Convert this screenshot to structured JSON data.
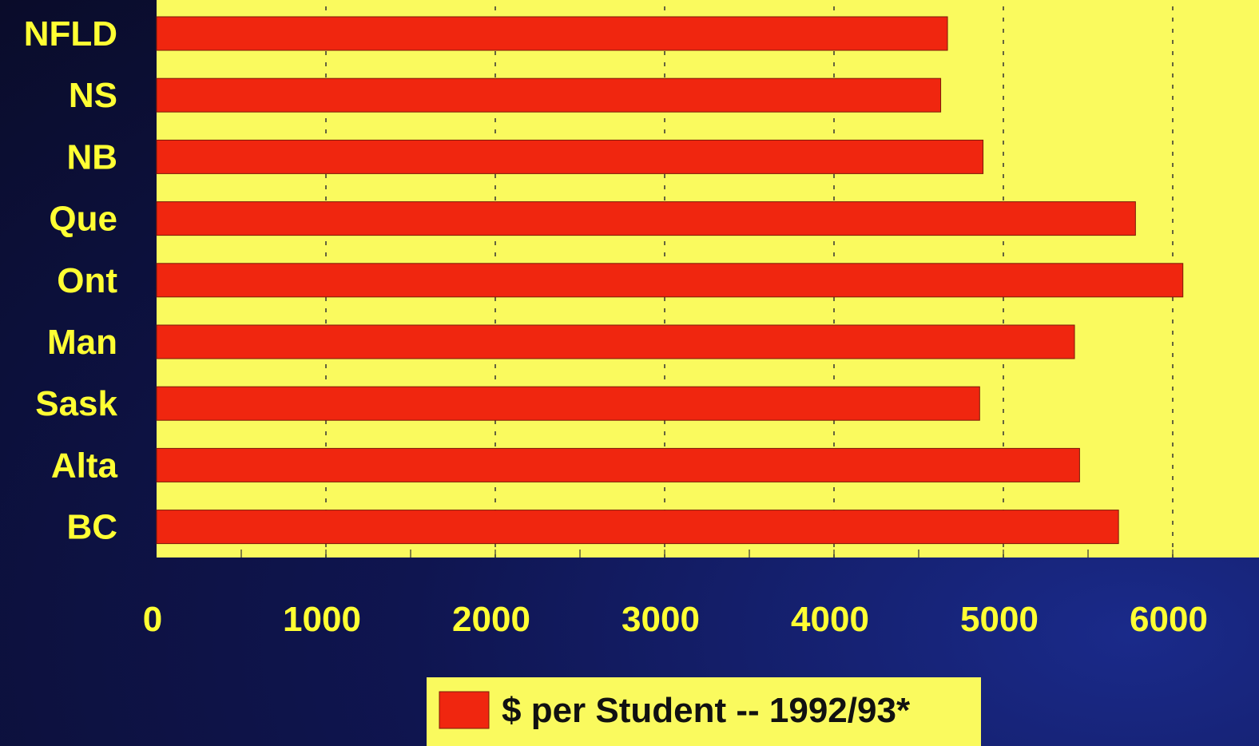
{
  "chart_data": {
    "type": "bar",
    "orientation": "horizontal",
    "categories": [
      "NFLD",
      "NS",
      "NB",
      "Que",
      "Ont",
      "Man",
      "Sask",
      "Alta",
      "BC"
    ],
    "series": [
      {
        "name": "$ per Student -- 1992/93*",
        "values": [
          4670,
          4630,
          4880,
          5780,
          6060,
          5420,
          4860,
          5450,
          5680
        ]
      }
    ],
    "xlim": [
      0,
      6500
    ],
    "xticks": [
      "0",
      "1000",
      "2000",
      "3000",
      "4000",
      "5000",
      "6000"
    ],
    "grid": "vertical dashed",
    "legend_position": "bottom-center"
  },
  "colors": {
    "plot_background": "#fafa5e",
    "bar": "#f0260f",
    "text": "#ffff33",
    "legend_text": "#111111"
  }
}
